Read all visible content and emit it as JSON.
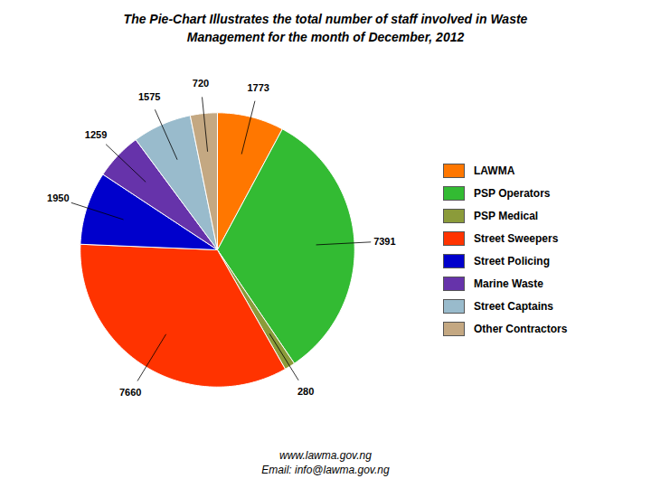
{
  "chart_data": {
    "type": "pie",
    "title": "The Pie-Chart Illustrates the total number of staff involved in Waste",
    "subtitle": "Management for the month of December, 2012",
    "categories": [
      "LAWMA",
      "PSP Operators",
      "PSP Medical",
      "Street Sweepers",
      "Street Policing",
      "Marine Waste",
      "Street Captains",
      "Other Contractors"
    ],
    "values": [
      1773,
      7391,
      280,
      7660,
      1950,
      1259,
      1575,
      720
    ],
    "colors": [
      "#FF7700",
      "#33BB33",
      "#8B9B3A",
      "#FF3300",
      "#0000CC",
      "#6633AA",
      "#99BBCC",
      "#C4A882"
    ],
    "data_labels": true,
    "legend": "right",
    "annotations": [
      "www.lawma.gov.ng",
      "Email: info@lawma.gov.ng"
    ]
  }
}
